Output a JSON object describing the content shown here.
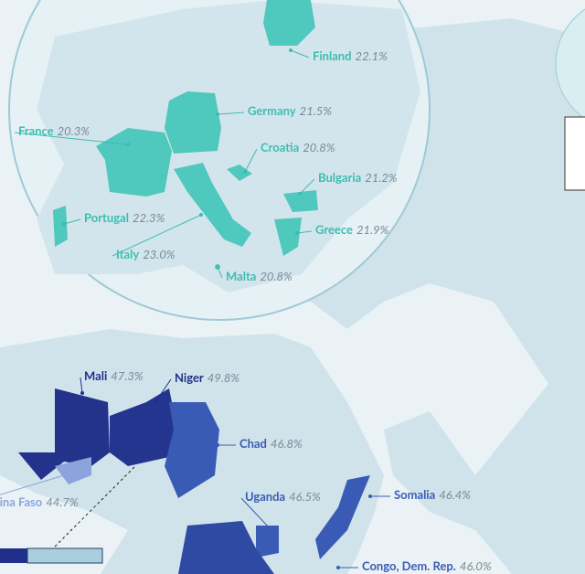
{
  "labels": [
    {
      "name": "Finland",
      "value": "22.1%"
    },
    {
      "name": "Germany",
      "value": "21.5%"
    },
    {
      "name": "France",
      "value": "20.3%"
    },
    {
      "name": "Croatia",
      "value": "20.8%"
    },
    {
      "name": "Bulgaria",
      "value": "21.2%"
    },
    {
      "name": "Portugal",
      "value": "22.3%"
    },
    {
      "name": "Greece",
      "value": "21.9%"
    },
    {
      "name": "Italy",
      "value": "23.0%"
    },
    {
      "name": "Malta",
      "value": "20.8%"
    },
    {
      "name": "Mali",
      "value": "47.3%"
    },
    {
      "name": "Niger",
      "value": "49.8%"
    },
    {
      "name": "Chad",
      "value": "46.8%"
    },
    {
      "name": "Burkina Faso",
      "value": "44.7%"
    },
    {
      "name": "Uganda",
      "value": "46.5%"
    },
    {
      "name": "Somalia",
      "value": "46.4%"
    },
    {
      "name": "Congo, Dem. Rep.",
      "value": "46.0%"
    }
  ]
}
